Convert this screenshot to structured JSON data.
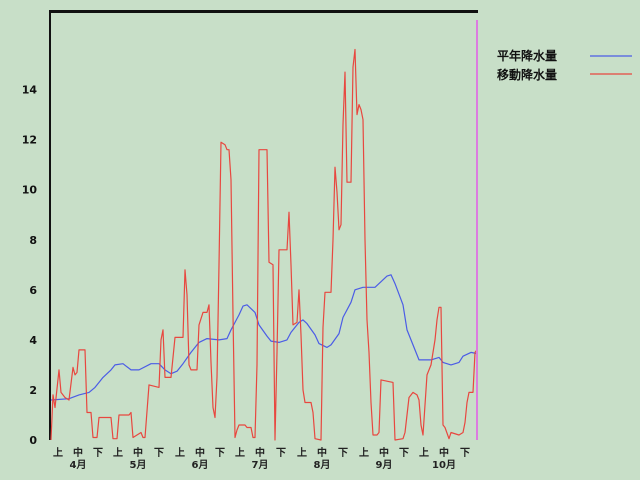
{
  "chart_data": {
    "type": "line",
    "x_axis": {
      "range": [
        "04-01",
        "10-31"
      ],
      "dekad_labels": [
        "上",
        "中",
        "下"
      ],
      "months": [
        "4月",
        "5月",
        "6月",
        "7月",
        "8月",
        "9月",
        "10月"
      ]
    },
    "ylim": [
      0,
      17.1
    ],
    "yticks": [
      0,
      2,
      4,
      6,
      8,
      10,
      12,
      14
    ],
    "grid": false,
    "legend_position": "top-right",
    "vline": {
      "x": "10-31",
      "color": "#dc7ce0"
    },
    "series": [
      {
        "name": "平年降水量",
        "color": "#4b5ce6",
        "points": [
          [
            "04-01",
            1.6
          ],
          [
            "04-10",
            1.65
          ],
          [
            "04-15",
            1.8
          ],
          [
            "04-20",
            1.9
          ],
          [
            "04-23",
            2.1
          ],
          [
            "04-27",
            2.5
          ],
          [
            "05-01",
            2.8
          ],
          [
            "05-03",
            3.0
          ],
          [
            "05-07",
            3.05
          ],
          [
            "05-11",
            2.8
          ],
          [
            "05-15",
            2.8
          ],
          [
            "05-21",
            3.05
          ],
          [
            "05-25",
            3.05
          ],
          [
            "05-28",
            2.8
          ],
          [
            "05-31",
            2.65
          ],
          [
            "06-03",
            2.75
          ],
          [
            "06-06",
            3.05
          ],
          [
            "06-10",
            3.5
          ],
          [
            "06-14",
            3.9
          ],
          [
            "06-18",
            4.05
          ],
          [
            "06-24",
            4.0
          ],
          [
            "06-28",
            4.05
          ],
          [
            "06-30",
            4.4
          ],
          [
            "07-04",
            5.0
          ],
          [
            "07-06",
            5.35
          ],
          [
            "07-08",
            5.4
          ],
          [
            "07-12",
            5.1
          ],
          [
            "07-14",
            4.6
          ],
          [
            "07-18",
            4.15
          ],
          [
            "07-20",
            3.95
          ],
          [
            "07-24",
            3.9
          ],
          [
            "07-28",
            4.0
          ],
          [
            "07-30",
            4.3
          ],
          [
            "08-03",
            4.7
          ],
          [
            "08-05",
            4.8
          ],
          [
            "08-07",
            4.65
          ],
          [
            "08-11",
            4.2
          ],
          [
            "08-13",
            3.85
          ],
          [
            "08-17",
            3.7
          ],
          [
            "08-19",
            3.8
          ],
          [
            "08-23",
            4.25
          ],
          [
            "08-25",
            4.9
          ],
          [
            "08-29",
            5.5
          ],
          [
            "08-31",
            6.0
          ],
          [
            "09-04",
            6.1
          ],
          [
            "09-10",
            6.1
          ],
          [
            "09-12",
            6.25
          ],
          [
            "09-16",
            6.55
          ],
          [
            "09-18",
            6.6
          ],
          [
            "09-20",
            6.25
          ],
          [
            "09-24",
            5.4
          ],
          [
            "09-26",
            4.4
          ],
          [
            "09-30",
            3.6
          ],
          [
            "10-02",
            3.2
          ],
          [
            "10-08",
            3.2
          ],
          [
            "10-12",
            3.3
          ],
          [
            "10-14",
            3.1
          ],
          [
            "10-18",
            3.0
          ],
          [
            "10-22",
            3.1
          ],
          [
            "10-24",
            3.35
          ],
          [
            "10-28",
            3.5
          ],
          [
            "10-31",
            3.45
          ]
        ]
      },
      {
        "name": "移動降水量",
        "color": "#e8473f",
        "points": [
          [
            "04-01",
            0.0
          ],
          [
            "04-02",
            1.8
          ],
          [
            "04-03",
            1.3
          ],
          [
            "04-05",
            2.8
          ],
          [
            "04-06",
            1.9
          ],
          [
            "04-08",
            1.7
          ],
          [
            "04-10",
            1.6
          ],
          [
            "04-12",
            2.9
          ],
          [
            "04-13",
            2.6
          ],
          [
            "04-14",
            2.7
          ],
          [
            "04-15",
            3.6
          ],
          [
            "04-18",
            3.6
          ],
          [
            "04-19",
            1.1
          ],
          [
            "04-21",
            1.1
          ],
          [
            "04-22",
            0.1
          ],
          [
            "04-24",
            0.1
          ],
          [
            "04-25",
            0.9
          ],
          [
            "05-01",
            0.9
          ],
          [
            "05-02",
            0.05
          ],
          [
            "05-04",
            0.05
          ],
          [
            "05-05",
            1.0
          ],
          [
            "05-10",
            1.0
          ],
          [
            "05-11",
            1.1
          ],
          [
            "05-12",
            0.1
          ],
          [
            "05-14",
            0.2
          ],
          [
            "05-16",
            0.3
          ],
          [
            "05-17",
            0.1
          ],
          [
            "05-18",
            0.1
          ],
          [
            "05-20",
            2.2
          ],
          [
            "05-25",
            2.1
          ],
          [
            "05-26",
            4.0
          ],
          [
            "05-27",
            4.4
          ],
          [
            "05-28",
            2.5
          ],
          [
            "05-31",
            2.5
          ],
          [
            "06-01",
            3.3
          ],
          [
            "06-02",
            4.1
          ],
          [
            "06-06",
            4.1
          ],
          [
            "06-07",
            6.8
          ],
          [
            "06-08",
            5.8
          ],
          [
            "06-09",
            3.0
          ],
          [
            "06-10",
            2.8
          ],
          [
            "06-13",
            2.8
          ],
          [
            "06-14",
            4.6
          ],
          [
            "06-16",
            5.1
          ],
          [
            "06-18",
            5.1
          ],
          [
            "06-19",
            5.4
          ],
          [
            "06-20",
            3.1
          ],
          [
            "06-21",
            1.3
          ],
          [
            "06-22",
            0.9
          ],
          [
            "06-23",
            2.5
          ],
          [
            "06-24",
            7.0
          ],
          [
            "06-25",
            11.9
          ],
          [
            "06-27",
            11.8
          ],
          [
            "06-28",
            11.6
          ],
          [
            "06-29",
            11.6
          ],
          [
            "06-30",
            10.4
          ],
          [
            "07-01",
            5.0
          ],
          [
            "07-02",
            0.1
          ],
          [
            "07-03",
            0.4
          ],
          [
            "07-04",
            0.6
          ],
          [
            "07-07",
            0.6
          ],
          [
            "07-08",
            0.5
          ],
          [
            "07-10",
            0.5
          ],
          [
            "07-11",
            0.1
          ],
          [
            "07-12",
            0.1
          ],
          [
            "07-13",
            3.0
          ],
          [
            "07-14",
            11.6
          ],
          [
            "07-18",
            11.6
          ],
          [
            "07-19",
            7.1
          ],
          [
            "07-21",
            7.0
          ],
          [
            "07-22",
            0.0
          ],
          [
            "07-23",
            3.5
          ],
          [
            "07-24",
            7.6
          ],
          [
            "07-28",
            7.6
          ],
          [
            "07-29",
            9.1
          ],
          [
            "07-30",
            7.0
          ],
          [
            "07-31",
            4.6
          ],
          [
            "08-02",
            4.7
          ],
          [
            "08-03",
            6.0
          ],
          [
            "08-04",
            4.2
          ],
          [
            "08-05",
            2.0
          ],
          [
            "08-06",
            1.5
          ],
          [
            "08-09",
            1.5
          ],
          [
            "08-10",
            1.1
          ],
          [
            "08-11",
            0.05
          ],
          [
            "08-14",
            0.0
          ],
          [
            "08-15",
            4.5
          ],
          [
            "08-16",
            5.9
          ],
          [
            "08-19",
            5.9
          ],
          [
            "08-20",
            8.0
          ],
          [
            "08-21",
            10.9
          ],
          [
            "08-22",
            9.9
          ],
          [
            "08-23",
            8.4
          ],
          [
            "08-24",
            8.6
          ],
          [
            "08-25",
            12.6
          ],
          [
            "08-26",
            14.7
          ],
          [
            "08-27",
            10.3
          ],
          [
            "08-29",
            10.3
          ],
          [
            "08-30",
            14.9
          ],
          [
            "08-31",
            15.6
          ],
          [
            "09-01",
            13.0
          ],
          [
            "09-02",
            13.4
          ],
          [
            "09-03",
            13.2
          ],
          [
            "09-04",
            12.8
          ],
          [
            "09-05",
            8.0
          ],
          [
            "09-06",
            4.8
          ],
          [
            "09-07",
            3.5
          ],
          [
            "09-08",
            1.5
          ],
          [
            "09-09",
            0.2
          ],
          [
            "09-11",
            0.2
          ],
          [
            "09-12",
            0.3
          ],
          [
            "09-13",
            2.4
          ],
          [
            "09-19",
            2.3
          ],
          [
            "09-20",
            0.0
          ],
          [
            "09-24",
            0.05
          ],
          [
            "09-25",
            0.3
          ],
          [
            "09-26",
            1.0
          ],
          [
            "09-27",
            1.7
          ],
          [
            "09-29",
            1.9
          ],
          [
            "10-01",
            1.8
          ],
          [
            "10-02",
            1.6
          ],
          [
            "10-03",
            0.6
          ],
          [
            "10-04",
            0.2
          ],
          [
            "10-06",
            2.6
          ],
          [
            "10-08",
            3.0
          ],
          [
            "10-10",
            4.0
          ],
          [
            "10-11",
            4.8
          ],
          [
            "10-12",
            5.3
          ],
          [
            "10-13",
            5.3
          ],
          [
            "10-14",
            0.6
          ],
          [
            "10-15",
            0.5
          ],
          [
            "10-17",
            0.05
          ],
          [
            "10-18",
            0.3
          ],
          [
            "10-22",
            0.2
          ],
          [
            "10-24",
            0.3
          ],
          [
            "10-25",
            0.7
          ],
          [
            "10-26",
            1.5
          ],
          [
            "10-27",
            1.9
          ],
          [
            "10-29",
            1.9
          ],
          [
            "10-30",
            3.5
          ],
          [
            "10-31",
            3.6
          ]
        ]
      }
    ]
  }
}
